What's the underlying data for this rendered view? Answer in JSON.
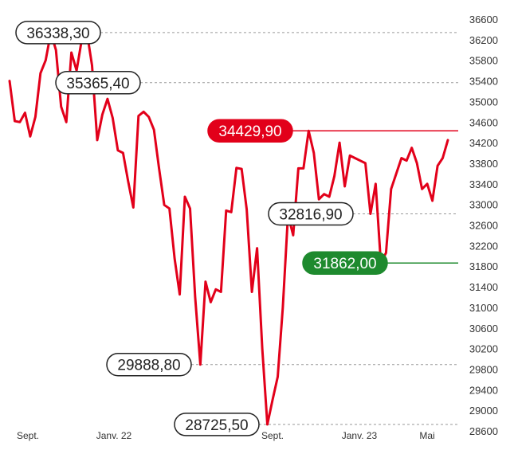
{
  "colors": {
    "line": "#e2001a",
    "highlight_red": "#e2001a",
    "highlight_green": "#1e8a2e",
    "grid": "#999999",
    "text": "#222222"
  },
  "chart_data": {
    "type": "line",
    "title": "",
    "xlabel": "",
    "ylabel": "",
    "ylim": [
      28600,
      36600
    ],
    "y_ticks": [
      36600,
      36200,
      35800,
      35400,
      35000,
      34600,
      34200,
      33800,
      33400,
      33000,
      32600,
      32200,
      31800,
      31400,
      31000,
      30600,
      30200,
      29800,
      29400,
      29000,
      28600
    ],
    "x_tick_labels": [
      "Sept.",
      "Janv. 22",
      "Sept.",
      "Janv. 23",
      "Mai"
    ],
    "grid": "dashed lines at annotated levels only",
    "series": [
      {
        "values": [
          35400,
          34620,
          34600,
          34780,
          34320,
          34700,
          35550,
          35800,
          36338,
          36000,
          34900,
          34600,
          35950,
          35600,
          36200,
          36338,
          35700,
          34250,
          34750,
          35050,
          34680,
          34050,
          34000,
          33450,
          32940,
          34720,
          34800,
          34700,
          34450,
          33700,
          32990,
          32920,
          31950,
          31250,
          33150,
          32920,
          31200,
          29889,
          31500,
          31100,
          31350,
          31300,
          32880,
          32850,
          33710,
          33690,
          32900,
          31300,
          32150,
          30200,
          28726,
          29200,
          29650,
          31000,
          32800,
          32400,
          33700,
          33700,
          34430,
          34000,
          33100,
          33200,
          33150,
          33550,
          34200,
          33350,
          33950,
          33900,
          33850,
          33800,
          32817,
          33400,
          31862,
          32060,
          33300,
          33600,
          33900,
          33850,
          34100,
          33800,
          33300,
          33400,
          33070,
          33750,
          33900,
          34250
        ]
      }
    ],
    "annotations": [
      {
        "label": "36338,30",
        "value": 36338.3,
        "style": "outline"
      },
      {
        "label": "35365,40",
        "value": 35365.4,
        "style": "outline"
      },
      {
        "label": "34429,90",
        "value": 34429.9,
        "style": "red"
      },
      {
        "label": "32816,90",
        "value": 32816.9,
        "style": "outline"
      },
      {
        "label": "31862,00",
        "value": 31862.0,
        "style": "green"
      },
      {
        "label": "29888,80",
        "value": 29888.8,
        "style": "outline"
      },
      {
        "label": "28725,50",
        "value": 28725.5,
        "style": "outline"
      }
    ]
  }
}
